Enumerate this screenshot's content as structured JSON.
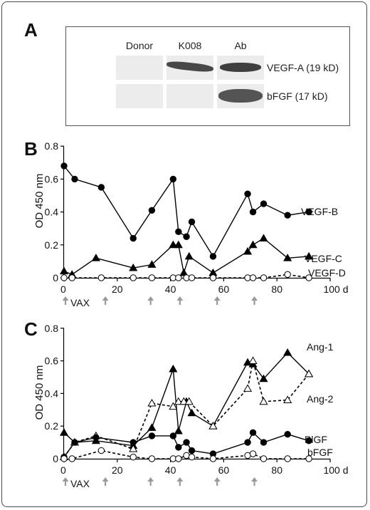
{
  "panel_a": {
    "letter": "A",
    "lanes": [
      "Donor",
      "K008",
      "Ab"
    ],
    "bands": [
      "VEGF-A (19 kD)",
      "bFGF (17 kD)"
    ],
    "blot_intensity": [
      [
        0.0,
        0.85,
        0.95
      ],
      [
        0.0,
        0.0,
        0.9
      ]
    ]
  },
  "chart_data": [
    {
      "panel": "B",
      "type": "line",
      "ylabel": "OD 450 nm",
      "ylim": [
        0,
        0.8
      ],
      "yticks": [
        "0",
        "0.2",
        "0.4",
        "0.6",
        "0.8"
      ],
      "xlim": [
        0,
        100
      ],
      "xticks": [
        "0",
        "20",
        "40",
        "60",
        "80",
        "100 d"
      ],
      "annotation": "VAX",
      "vax_days": [
        0,
        15,
        32,
        43,
        57,
        71
      ],
      "series": [
        {
          "name": "VEGF-B",
          "marker": "filled-circle",
          "dash": false,
          "x": [
            0,
            4,
            14,
            26,
            33,
            41,
            43,
            46,
            48,
            56,
            69,
            71,
            75,
            84,
            92
          ],
          "values": [
            0.68,
            0.6,
            0.55,
            0.24,
            0.41,
            0.6,
            0.28,
            0.25,
            0.34,
            0.13,
            0.51,
            0.4,
            0.45,
            0.38,
            0.4
          ]
        },
        {
          "name": "VEGF-C",
          "marker": "filled-triangle",
          "dash": false,
          "x": [
            0,
            3,
            12,
            26,
            33,
            41,
            43,
            45,
            47,
            56,
            69,
            71,
            75,
            84,
            92
          ],
          "values": [
            0.04,
            0.02,
            0.12,
            0.06,
            0.08,
            0.2,
            0.2,
            0.03,
            0.13,
            0.03,
            0.16,
            0.2,
            0.24,
            0.12,
            0.13
          ]
        },
        {
          "name": "VEGF-D",
          "marker": "open-circle",
          "dash": true,
          "x": [
            0,
            3,
            14,
            26,
            33,
            41,
            43,
            46,
            48,
            56,
            69,
            71,
            75,
            84,
            92
          ],
          "values": [
            0.0,
            0.0,
            0.0,
            0.0,
            0.0,
            0.0,
            0.0,
            0.0,
            0.0,
            0.0,
            0.0,
            0.0,
            0.0,
            0.02,
            0.0
          ]
        }
      ]
    },
    {
      "panel": "C",
      "type": "line",
      "ylabel": "OD 450 nm",
      "ylim": [
        0,
        0.8
      ],
      "yticks": [
        "0",
        "0.2",
        "0.4",
        "0.6",
        "0.8"
      ],
      "xlim": [
        0,
        100
      ],
      "xticks": [
        "0",
        "20",
        "40",
        "60",
        "80",
        "100 d"
      ],
      "annotation": "VAX",
      "vax_days": [
        0,
        15,
        32,
        43,
        57,
        71
      ],
      "series": [
        {
          "name": "Ang-1",
          "marker": "filled-triangle",
          "dash": false,
          "x": [
            0,
            4,
            12,
            26,
            33,
            41,
            43,
            46,
            48,
            56,
            69,
            71,
            75,
            84,
            92
          ],
          "values": [
            0.16,
            0.1,
            0.11,
            0.08,
            0.19,
            0.55,
            0.17,
            0.35,
            0.28,
            0.2,
            0.59,
            0.58,
            0.49,
            0.65,
            0.52
          ]
        },
        {
          "name": "Ang-2",
          "marker": "open-triangle",
          "dash": true,
          "x": [
            0,
            4,
            12,
            26,
            33,
            41,
            43,
            45,
            47,
            56,
            69,
            71,
            75,
            84,
            92
          ],
          "values": [
            0.01,
            0.1,
            0.14,
            0.06,
            0.34,
            0.32,
            0.35,
            0.35,
            0.35,
            0.2,
            0.43,
            0.6,
            0.35,
            0.36,
            0.52
          ]
        },
        {
          "name": "PlGF",
          "marker": "filled-circle",
          "dash": false,
          "x": [
            0,
            4,
            12,
            26,
            33,
            41,
            43,
            46,
            48,
            56,
            69,
            71,
            75,
            84,
            92
          ],
          "values": [
            0.01,
            0.1,
            0.13,
            0.1,
            0.14,
            0.14,
            0.07,
            0.1,
            0.05,
            0.03,
            0.1,
            0.16,
            0.1,
            0.15,
            0.11
          ]
        },
        {
          "name": "bFGF",
          "marker": "open-circle",
          "dash": true,
          "x": [
            0,
            3,
            14,
            26,
            33,
            41,
            43,
            46,
            48,
            56,
            69,
            71,
            75,
            84,
            92
          ],
          "values": [
            0.0,
            0.0,
            0.05,
            0.01,
            0.0,
            0.0,
            0.0,
            0.02,
            0.01,
            0.0,
            0.02,
            0.03,
            0.0,
            0.0,
            0.0
          ]
        }
      ]
    }
  ]
}
